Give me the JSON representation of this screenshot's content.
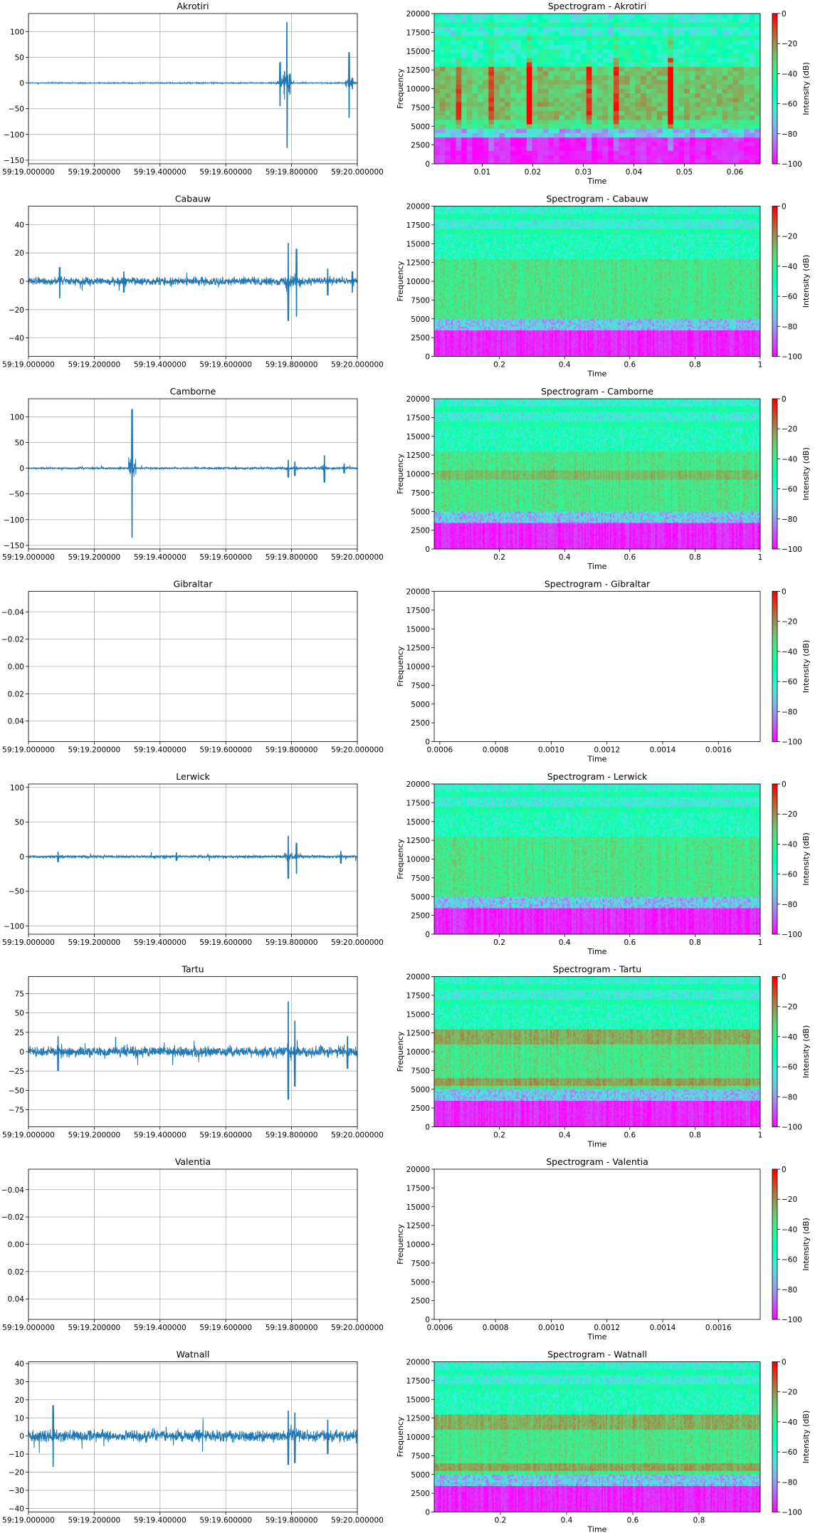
{
  "chart_data": [
    {
      "type": "line",
      "title": "Akrotiri",
      "inverted_y": true,
      "ylim": [
        135,
        -157
      ],
      "yticks": [
        -150,
        -100,
        -50,
        0,
        50,
        100
      ],
      "xticks": [
        "59:19.000000",
        "59:19.200000",
        "59:19.400000",
        "59:19.600000",
        "59:19.800000",
        "59:20.000000"
      ],
      "grid": true,
      "color": "#1f77b4",
      "events": [
        [
          0.765,
          -45,
          40
        ],
        [
          0.778,
          -30,
          28
        ],
        [
          0.786,
          -125,
          118
        ],
        [
          0.795,
          -22,
          18
        ],
        [
          0.975,
          -68,
          60
        ],
        [
          0.985,
          -12,
          10
        ]
      ],
      "noise": 0.8
    },
    {
      "type": "heatmap",
      "title": "Spectrogram - Akrotiri",
      "xlabel": "Time",
      "ylabel": "Frequency",
      "xlim": [
        0.0005,
        0.065
      ],
      "xticks": [
        0.01,
        0.02,
        0.03,
        0.04,
        0.05,
        0.06
      ],
      "yticks": [
        0,
        2500,
        5000,
        7500,
        10000,
        12500,
        15000,
        17500,
        20000
      ],
      "colorbar": {
        "label": "Intensity (dB)",
        "ticks": [
          0,
          -20,
          -40,
          -60,
          -80,
          -100
        ]
      },
      "style": "coarse",
      "hot_times": [
        0.019,
        0.047
      ],
      "warm_times": [
        0.005,
        0.011,
        0.031,
        0.036,
        0.058
      ]
    },
    {
      "type": "line",
      "title": "Cabauw",
      "inverted_y": true,
      "ylim": [
        53,
        -53
      ],
      "yticks": [
        -40,
        -20,
        0,
        20,
        40
      ],
      "xticks": [
        "59:19.000000",
        "59:19.200000",
        "59:19.400000",
        "59:19.600000",
        "59:19.800000",
        "59:20.000000"
      ],
      "grid": true,
      "color": "#1f77b4",
      "events": [
        [
          0.095,
          -12,
          10
        ],
        [
          0.29,
          -8,
          7
        ],
        [
          0.79,
          -28,
          27
        ],
        [
          0.815,
          -25,
          23
        ],
        [
          0.91,
          -10,
          9
        ],
        [
          0.985,
          -8,
          7
        ]
      ],
      "noise": 2.2
    },
    {
      "type": "heatmap",
      "title": "Spectrogram - Cabauw",
      "xlabel": "Time",
      "ylabel": "Frequency",
      "xlim": [
        0.0,
        1.0
      ],
      "xticks": [
        0.2,
        0.4,
        0.6,
        0.8,
        1.0
      ],
      "yticks": [
        0,
        2500,
        5000,
        7500,
        10000,
        12500,
        15000,
        17500,
        20000
      ],
      "colorbar": {
        "label": "Intensity (dB)",
        "ticks": [
          0,
          -20,
          -40,
          -60,
          -80,
          -100
        ]
      },
      "style": "fine",
      "accent": "none"
    },
    {
      "type": "line",
      "title": "Camborne",
      "inverted_y": true,
      "ylim": [
        135,
        -157
      ],
      "yticks": [
        -150,
        -100,
        -50,
        0,
        50,
        100
      ],
      "xticks": [
        "59:19.000000",
        "59:19.200000",
        "59:19.400000",
        "59:19.600000",
        "59:19.800000",
        "59:20.000000"
      ],
      "grid": true,
      "color": "#1f77b4",
      "events": [
        [
          0.315,
          -135,
          115
        ],
        [
          0.79,
          -18,
          16
        ],
        [
          0.81,
          -15,
          13
        ],
        [
          0.9,
          -28,
          25
        ],
        [
          0.96,
          -10,
          9
        ]
      ],
      "noise": 1.5
    },
    {
      "type": "heatmap",
      "title": "Spectrogram - Camborne",
      "xlabel": "Time",
      "ylabel": "Frequency",
      "xlim": [
        0.0,
        1.0
      ],
      "xticks": [
        0.2,
        0.4,
        0.6,
        0.8,
        1.0
      ],
      "yticks": [
        0,
        2500,
        5000,
        7500,
        10000,
        12500,
        15000,
        17500,
        20000
      ],
      "colorbar": {
        "label": "Intensity (dB)",
        "ticks": [
          0,
          -20,
          -40,
          -60,
          -80,
          -100
        ]
      },
      "style": "fine",
      "accent": "mid"
    },
    {
      "type": "line",
      "title": "Gibraltar",
      "inverted_y": false,
      "ylim": [
        -0.055,
        0.055
      ],
      "yticks": [
        0.04,
        0.02,
        0.0,
        -0.02,
        -0.04
      ],
      "ytick_labels": [
        "0.04",
        "0.02",
        "0.00",
        "−0.02",
        "−0.04"
      ],
      "xticks": [
        "59:19.000000",
        "59:19.200000",
        "59:19.400000",
        "59:19.600000",
        "59:19.800000",
        "59:20.000000"
      ],
      "grid": true,
      "color": "#1f77b4",
      "empty": true
    },
    {
      "type": "heatmap",
      "title": "Spectrogram - Gibraltar",
      "xlabel": "Time",
      "ylabel": "Frequency",
      "xlim": [
        0.00058,
        0.00175
      ],
      "xticks": [
        0.0006,
        0.0008,
        0.001,
        0.0012,
        0.0014,
        0.0016
      ],
      "xtick_labels": [
        "0.0006",
        "0.0008",
        "0.0010",
        "0.0012",
        "0.0014",
        "0.0016"
      ],
      "yticks": [
        0,
        2500,
        5000,
        7500,
        10000,
        12500,
        15000,
        17500,
        20000
      ],
      "colorbar": {
        "label": "Intensity (dB)",
        "ticks": [
          0,
          -20,
          -40,
          -60,
          -80,
          -100
        ]
      },
      "style": "empty"
    },
    {
      "type": "line",
      "title": "Lerwick",
      "inverted_y": true,
      "ylim": [
        105,
        -112
      ],
      "yticks": [
        -100,
        -50,
        0,
        50,
        100
      ],
      "xticks": [
        "59:19.000000",
        "59:19.200000",
        "59:19.400000",
        "59:19.600000",
        "59:19.800000",
        "59:20.000000"
      ],
      "grid": true,
      "color": "#1f77b4",
      "events": [
        [
          0.09,
          -8,
          7
        ],
        [
          0.45,
          -6,
          6
        ],
        [
          0.79,
          -32,
          30
        ],
        [
          0.815,
          -25,
          20
        ],
        [
          0.95,
          -10,
          8
        ]
      ],
      "noise": 1.6
    },
    {
      "type": "heatmap",
      "title": "Spectrogram - Lerwick",
      "xlabel": "Time",
      "ylabel": "Frequency",
      "xlim": [
        0.0,
        1.0
      ],
      "xticks": [
        0.2,
        0.4,
        0.6,
        0.8,
        1.0
      ],
      "yticks": [
        0,
        2500,
        5000,
        7500,
        10000,
        12500,
        15000,
        17500,
        20000
      ],
      "colorbar": {
        "label": "Intensity (dB)",
        "ticks": [
          0,
          -20,
          -40,
          -60,
          -80,
          -100
        ]
      },
      "style": "fine",
      "accent": "none"
    },
    {
      "type": "line",
      "title": "Tartu",
      "inverted_y": true,
      "ylim": [
        97,
        -97
      ],
      "yticks": [
        -75,
        -50,
        -25,
        0,
        25,
        50,
        75
      ],
      "xticks": [
        "59:19.000000",
        "59:19.200000",
        "59:19.400000",
        "59:19.600000",
        "59:19.800000",
        "59:20.000000"
      ],
      "grid": true,
      "color": "#1f77b4",
      "events": [
        [
          0.09,
          -25,
          20
        ],
        [
          0.79,
          -62,
          65
        ],
        [
          0.81,
          -45,
          40
        ],
        [
          0.97,
          -22,
          20
        ]
      ],
      "noise": 5.5
    },
    {
      "type": "heatmap",
      "title": "Spectrogram - Tartu",
      "xlabel": "Time",
      "ylabel": "Frequency",
      "xlim": [
        0.0,
        1.0
      ],
      "xticks": [
        0.2,
        0.4,
        0.6,
        0.8,
        1.0
      ],
      "yticks": [
        0,
        2500,
        5000,
        7500,
        10000,
        12500,
        15000,
        17500,
        20000
      ],
      "colorbar": {
        "label": "Intensity (dB)",
        "ticks": [
          0,
          -20,
          -40,
          -60,
          -80,
          -100
        ]
      },
      "style": "fine",
      "accent": "bands"
    },
    {
      "type": "line",
      "title": "Valentia",
      "inverted_y": false,
      "ylim": [
        -0.055,
        0.055
      ],
      "yticks": [
        0.04,
        0.02,
        0.0,
        -0.02,
        -0.04
      ],
      "ytick_labels": [
        "0.04",
        "0.02",
        "0.00",
        "−0.02",
        "−0.04"
      ],
      "xticks": [
        "59:19.000000",
        "59:19.200000",
        "59:19.400000",
        "59:19.600000",
        "59:19.800000",
        "59:20.000000"
      ],
      "grid": true,
      "color": "#1f77b4",
      "empty": true
    },
    {
      "type": "heatmap",
      "title": "Spectrogram - Valentia",
      "xlabel": "Time",
      "ylabel": "Frequency",
      "xlim": [
        0.00058,
        0.00175
      ],
      "xticks": [
        0.0006,
        0.0008,
        0.001,
        0.0012,
        0.0014,
        0.0016
      ],
      "xtick_labels": [
        "0.0006",
        "0.0008",
        "0.0010",
        "0.0012",
        "0.0014",
        "0.0016"
      ],
      "yticks": [
        0,
        2500,
        5000,
        7500,
        10000,
        12500,
        15000,
        17500,
        20000
      ],
      "colorbar": {
        "label": "Intensity (dB)",
        "ticks": [
          0,
          -20,
          -40,
          -60,
          -80,
          -100
        ]
      },
      "style": "empty"
    },
    {
      "type": "line",
      "title": "Watnall",
      "inverted_y": true,
      "ylim": [
        41,
        -42
      ],
      "yticks": [
        -40,
        -30,
        -20,
        -10,
        0,
        10,
        20,
        30,
        40
      ],
      "xticks": [
        "59:19.000000",
        "59:19.200000",
        "59:19.400000",
        "59:19.600000",
        "59:19.800000",
        "59:20.000000"
      ],
      "grid": true,
      "color": "#1f77b4",
      "events": [
        [
          0.075,
          -17,
          17
        ],
        [
          0.79,
          -16,
          14
        ],
        [
          0.81,
          -15,
          13
        ],
        [
          0.91,
          -10,
          9
        ]
      ],
      "noise": 2.6
    },
    {
      "type": "heatmap",
      "title": "Spectrogram - Watnall",
      "xlabel": "Time",
      "ylabel": "Frequency",
      "xlim": [
        0.0,
        0.985
      ],
      "xticks": [
        0.2,
        0.4,
        0.6,
        0.8
      ],
      "yticks": [
        0,
        2500,
        5000,
        7500,
        10000,
        12500,
        15000,
        17500,
        20000
      ],
      "colorbar": {
        "label": "Intensity (dB)",
        "ticks": [
          0,
          -20,
          -40,
          -60,
          -80,
          -100
        ]
      },
      "style": "fine",
      "accent": "bands"
    }
  ]
}
